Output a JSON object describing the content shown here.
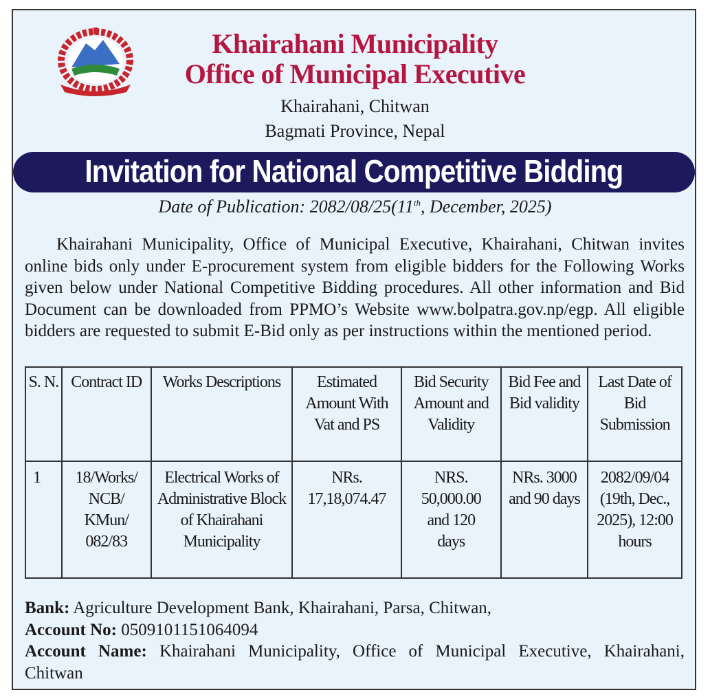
{
  "header": {
    "title": "Khairahani Municipality",
    "subtitle": "Office of Municipal Executive",
    "address_line1": "Khairahani, Chitwan",
    "address_line2": "Bagmati Province, Nepal"
  },
  "banner": "Invitation for National Competitive Bidding",
  "publication": {
    "prefix": "Date of Publication: 2082/08/25(11",
    "sup": "th",
    "suffix": ", December, 2025)"
  },
  "intro": "Khairahani Municipality, Office of Municipal Executive, Khairahani, Chitwan invites online bids only under E-procurement system from eligible bidders for the Following Works given below under National Competitive Bidding procedures. All other information and Bid Document can be downloaded from PPMO’s Website www.bolpatra.gov.np/egp. All eligible bidders are requested to submit E-Bid only as per instructions within the mentioned period.",
  "table": {
    "headers": [
      "S. N.",
      "Contract ID",
      "Works Descriptions",
      "Estimated Amount With Vat and PS",
      "Bid Security Amount and Validity",
      "Bid Fee and Bid validity",
      "Last Date of Bid Submission"
    ],
    "rows": [
      [
        "1",
        "18/Works/ NCB/ KMun/ 082/83",
        "Electrical Works of Administrative Block of Khairahani Municipality",
        "NRs. 17,18,074.47",
        "NRS. 50,000.00 and 120 days",
        "NRs. 3000 and 90 days",
        "2082/09/04 (19th, Dec., 2025), 12:00 hours"
      ]
    ]
  },
  "bank": {
    "bank_label": "Bank:",
    "bank_value": "Agriculture Development Bank, Khairahani, Parsa, Chitwan,",
    "account_no_label": "Account No:",
    "account_no_value": "0509101151064094",
    "account_name_label": "Account Name:",
    "account_name_value": "Khairahani Municipality, Office of Municipal Executive, Khairahani, Chitwan"
  },
  "colors": {
    "title": "#b5163f",
    "banner": "#1c1a5c",
    "background": "#e9f3fb"
  },
  "logo": "nepal-government-emblem"
}
